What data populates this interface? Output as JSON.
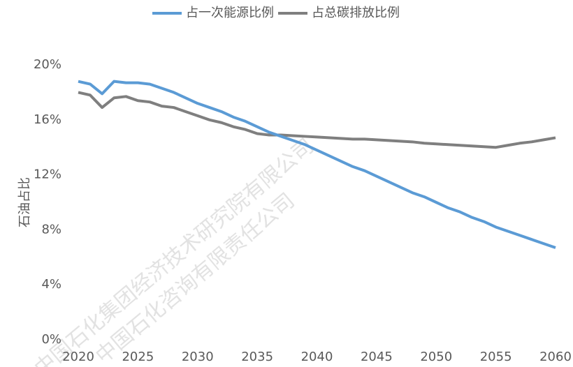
{
  "chart_data": {
    "type": "line",
    "y_label": "石油占比",
    "watermark": [
      "中国石化集团经济技术研究院有限公司",
      "中国石化咨询有限责任公司"
    ],
    "x": [
      2020,
      2021,
      2022,
      2023,
      2024,
      2025,
      2026,
      2027,
      2028,
      2029,
      2030,
      2031,
      2032,
      2033,
      2034,
      2035,
      2036,
      2037,
      2038,
      2039,
      2040,
      2041,
      2042,
      2043,
      2044,
      2045,
      2046,
      2047,
      2048,
      2049,
      2050,
      2051,
      2052,
      2053,
      2054,
      2055,
      2056,
      2057,
      2058,
      2059,
      2060
    ],
    "series": [
      {
        "name": "占一次能源比例",
        "color": "#5b9bd5",
        "values": [
          18.8,
          18.6,
          17.9,
          18.8,
          18.7,
          18.7,
          18.6,
          18.3,
          18.0,
          17.6,
          17.2,
          16.9,
          16.6,
          16.2,
          15.9,
          15.5,
          15.1,
          14.8,
          14.5,
          14.2,
          13.8,
          13.4,
          13.0,
          12.6,
          12.3,
          11.9,
          11.5,
          11.1,
          10.7,
          10.4,
          10.0,
          9.6,
          9.3,
          8.9,
          8.6,
          8.2,
          7.9,
          7.6,
          7.3,
          7.0,
          6.7
        ]
      },
      {
        "name": "占总碳排放比例",
        "color": "#7f7f7f",
        "values": [
          18.0,
          17.8,
          16.9,
          17.6,
          17.7,
          17.4,
          17.3,
          17.0,
          16.9,
          16.6,
          16.3,
          16.0,
          15.8,
          15.5,
          15.3,
          15.0,
          14.9,
          14.9,
          14.85,
          14.8,
          14.75,
          14.7,
          14.65,
          14.6,
          14.6,
          14.55,
          14.5,
          14.45,
          14.4,
          14.3,
          14.25,
          14.2,
          14.15,
          14.1,
          14.05,
          14.0,
          14.15,
          14.3,
          14.4,
          14.55,
          14.7
        ]
      }
    ],
    "xlim": [
      2020,
      2060
    ],
    "xticks": [
      2020,
      2025,
      2030,
      2035,
      2040,
      2045,
      2050,
      2055,
      2060
    ],
    "ylim": [
      0,
      20
    ],
    "yticks": [
      {
        "value": 0,
        "label": "0%"
      },
      {
        "value": 4,
        "label": "4%"
      },
      {
        "value": 8,
        "label": "8%"
      },
      {
        "value": 12,
        "label": "12%"
      },
      {
        "value": 16,
        "label": "16%"
      },
      {
        "value": 20,
        "label": "20%"
      }
    ],
    "legend": "top"
  }
}
